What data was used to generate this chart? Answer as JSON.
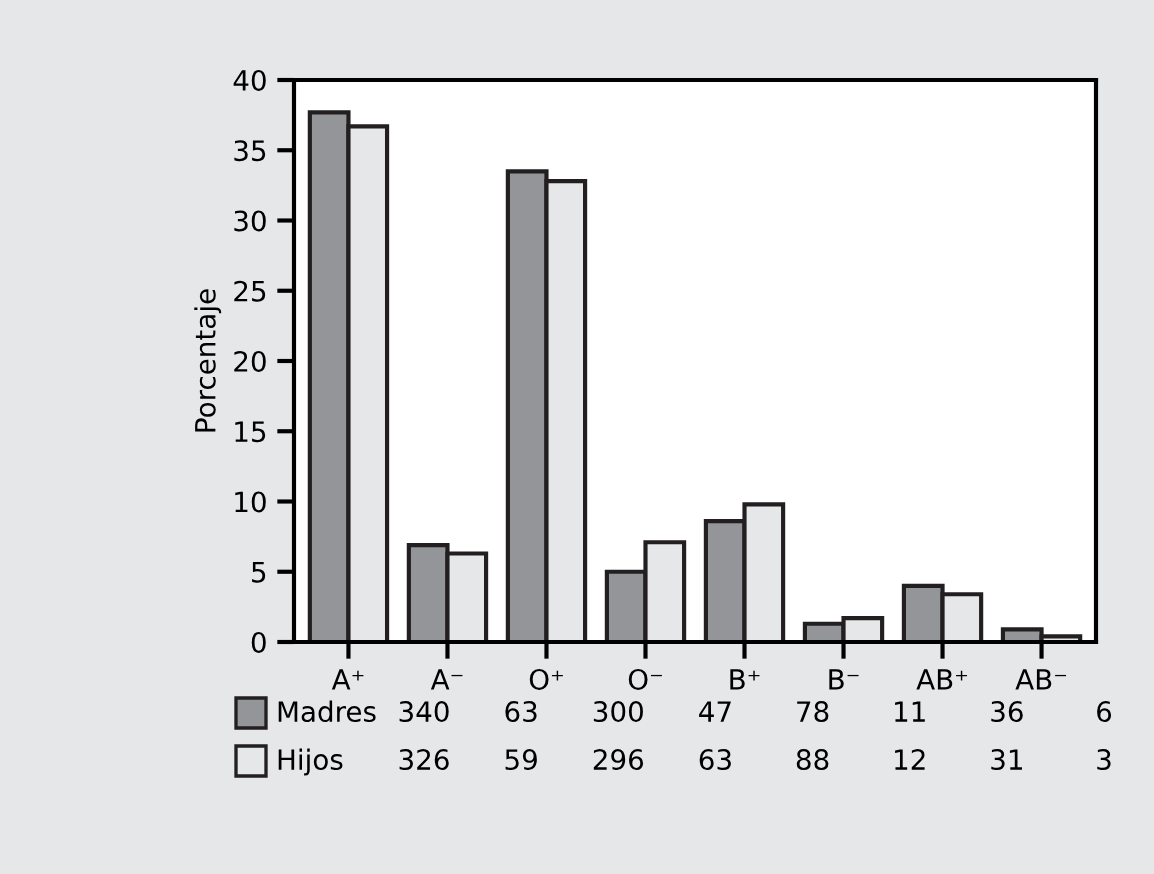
{
  "chart_data": {
    "type": "bar",
    "ylabel": "Porcentaje",
    "categories": [
      "A⁺",
      "A⁻",
      "O⁺",
      "O⁻",
      "B⁺",
      "B⁻",
      "AB⁺",
      "AB⁻"
    ],
    "series": [
      {
        "name": "Madres",
        "color": "#939598",
        "values": [
          37.7,
          6.9,
          33.5,
          5.0,
          8.6,
          1.3,
          4.0,
          0.9
        ]
      },
      {
        "name": "Hijos",
        "color": "#e6e7e8",
        "values": [
          36.7,
          6.3,
          32.8,
          7.1,
          9.8,
          1.7,
          3.4,
          0.4
        ]
      }
    ],
    "annotations": [
      "340",
      "63",
      "300",
      "47",
      "78",
      "11",
      "36",
      "6",
      "326",
      "59",
      "296",
      "63",
      "88",
      "12",
      "31",
      "3"
    ],
    "ylim": [
      0,
      40
    ],
    "yticks": [
      0,
      5,
      10,
      15,
      20,
      25,
      30,
      35,
      40
    ],
    "grid": false,
    "legend": "bottom"
  }
}
